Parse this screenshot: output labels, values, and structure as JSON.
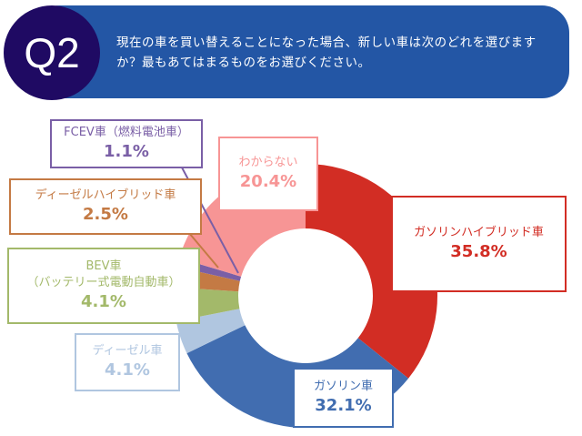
{
  "header": {
    "badge": "Q2",
    "question": "現在の車を買い替えることになった場合、新しい車は次のどれを選びますか？最もあてはまるものをお選びください。"
  },
  "chart_data": {
    "type": "pie",
    "donut": true,
    "slices": [
      {
        "label": "ガソリンハイブリッド車",
        "value": 35.8,
        "value_label": "35.8%",
        "color": "#d22d24"
      },
      {
        "label": "ガソリン車",
        "value": 32.1,
        "value_label": "32.1%",
        "color": "#416db0"
      },
      {
        "label": "ディーゼル車",
        "value": 4.1,
        "value_label": "4.1%",
        "color": "#b0c6e0"
      },
      {
        "label": "BEV車",
        "sublabel": "（バッテリー式電動自動車）",
        "value": 4.1,
        "value_label": "4.1%",
        "color": "#a3b96a"
      },
      {
        "label": "ディーゼルハイブリッド車",
        "value": 2.5,
        "value_label": "2.5%",
        "color": "#c47a44"
      },
      {
        "label": "FCEV車（燃料電池車）",
        "value": 1.1,
        "value_label": "1.1%",
        "color": "#7a5fa6"
      },
      {
        "label": "わからない",
        "value": 20.4,
        "value_label": "20.4%",
        "color": "#f79595"
      }
    ]
  }
}
